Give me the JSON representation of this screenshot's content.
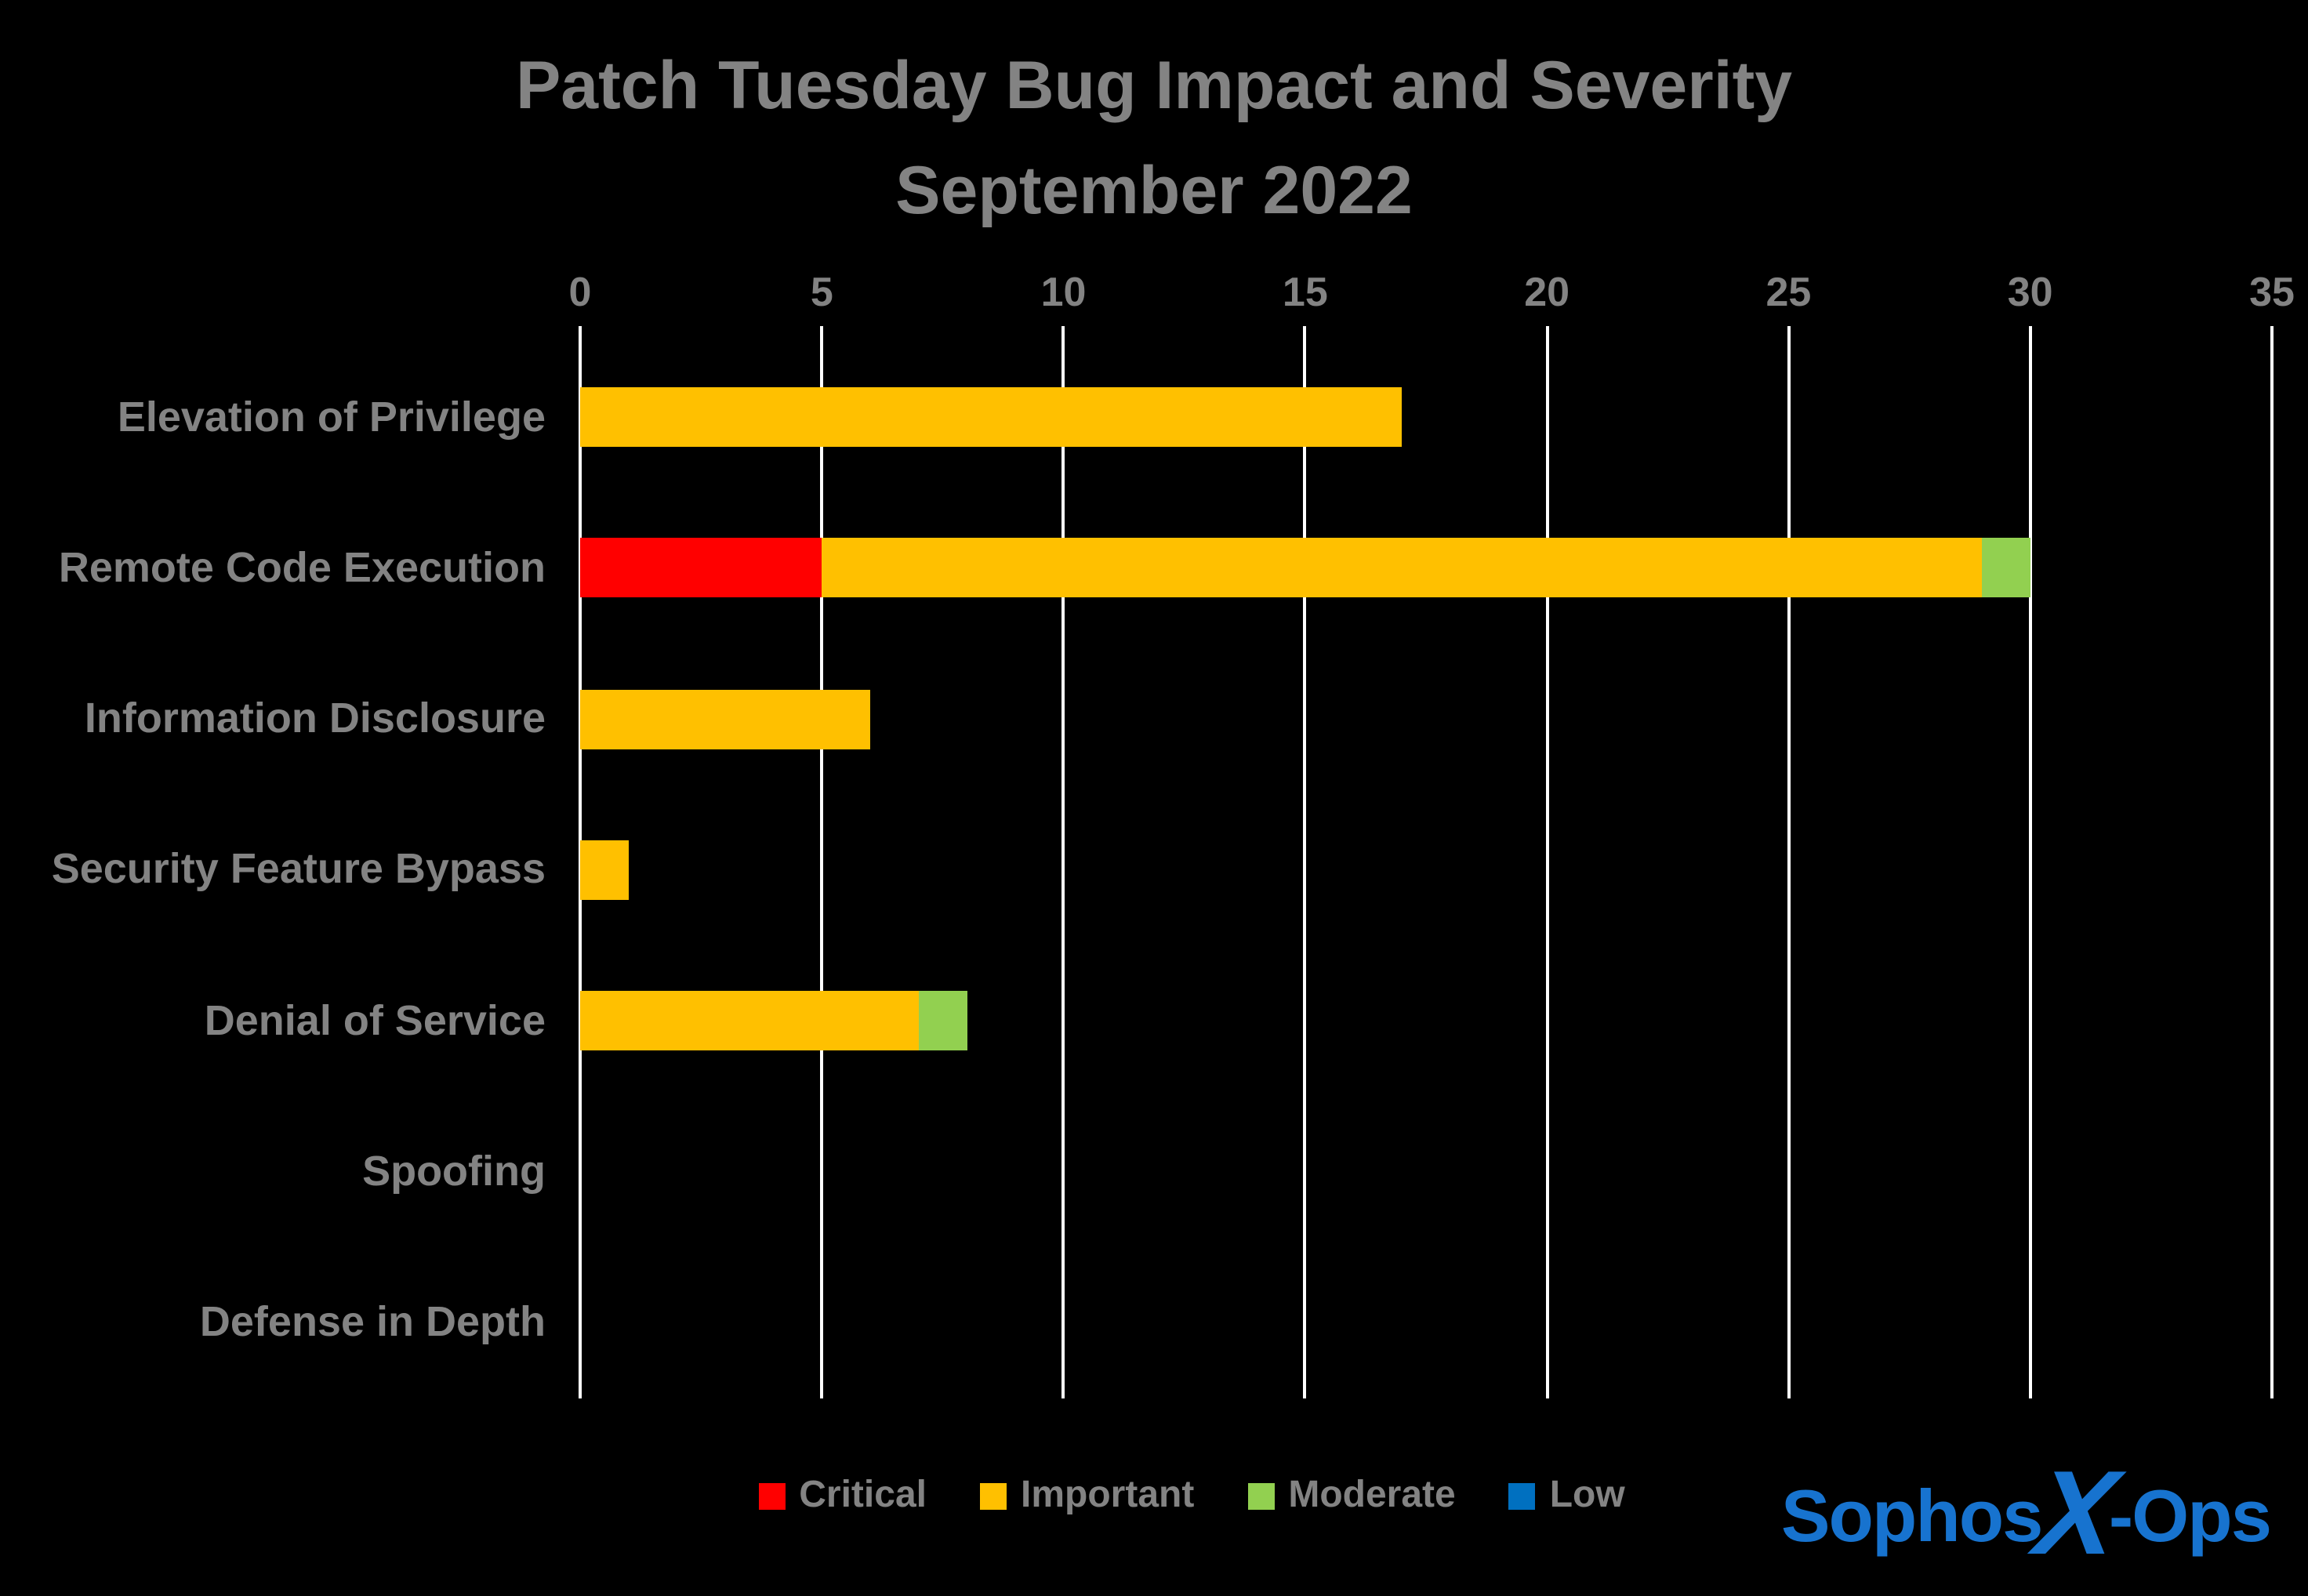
{
  "title": {
    "line1": "Patch Tuesday Bug Impact and Severity",
    "line2": "September 2022"
  },
  "chart_data": {
    "type": "bar",
    "orientation": "horizontal",
    "stacked": true,
    "title": "Patch Tuesday Bug Impact and Severity September 2022",
    "categories": [
      "Elevation of Privilege",
      "Remote Code Execution",
      "Information Disclosure",
      "Security Feature Bypass",
      "Denial of Service",
      "Spoofing",
      "Defense in Depth"
    ],
    "series": [
      {
        "name": "Critical",
        "color": "#ff0000",
        "values": [
          0,
          5,
          0,
          0,
          0,
          0,
          0
        ]
      },
      {
        "name": "Important",
        "color": "#ffc000",
        "values": [
          17,
          24,
          6,
          1,
          7,
          0,
          0
        ]
      },
      {
        "name": "Moderate",
        "color": "#92d050",
        "values": [
          0,
          1,
          0,
          0,
          1,
          0,
          0
        ]
      },
      {
        "name": "Low",
        "color": "#0070c0",
        "values": [
          0,
          0,
          0,
          0,
          0,
          0,
          0
        ]
      }
    ],
    "xlim": [
      0,
      35
    ],
    "xticks": [
      0,
      5,
      10,
      15,
      20,
      25,
      30,
      35
    ],
    "grid": true,
    "legend_position": "bottom",
    "background": "#000000",
    "text_color": "#838383"
  },
  "logo": {
    "prefix": "Sophos",
    "x": "X",
    "suffix": "-Ops",
    "color": "#1773cf"
  }
}
